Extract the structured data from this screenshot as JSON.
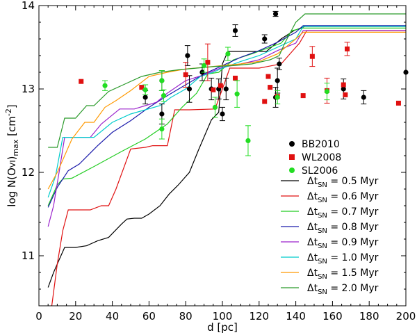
{
  "chart_data": {
    "type": "scatter",
    "xlabel": "d [pc]",
    "ylabel": {
      "prefix": "log N(O",
      "ion": "VI",
      "suffix": ")",
      "sub": "max",
      "unit_open": " [cm",
      "unit_exp": "-2",
      "unit_close": "]"
    },
    "xlim": [
      0,
      200
    ],
    "ylim": [
      10.4,
      14
    ],
    "xticks": [
      0,
      20,
      40,
      60,
      80,
      100,
      120,
      140,
      160,
      180,
      200
    ],
    "yticks": [
      11,
      12,
      13,
      14
    ],
    "legend_position": "lower-right",
    "scatter_series": [
      {
        "name": "BB2010",
        "marker": "circle",
        "color": "#000000",
        "points": [
          {
            "x": 58,
            "y": 12.9,
            "err": 0.08
          },
          {
            "x": 67,
            "y": 12.7,
            "err": 0.12
          },
          {
            "x": 67,
            "y": 13.1,
            "err": 0.12
          },
          {
            "x": 81,
            "y": 13.4,
            "err": 0.12
          },
          {
            "x": 82,
            "y": 13.0,
            "err": 0.16
          },
          {
            "x": 89,
            "y": 13.2,
            "err": 0.1
          },
          {
            "x": 94,
            "y": 13.0,
            "err": 0.13
          },
          {
            "x": 98,
            "y": 13.0,
            "err": 0.12
          },
          {
            "x": 100,
            "y": 12.7,
            "err": 0.08
          },
          {
            "x": 102,
            "y": 13.0,
            "err": 0.13
          },
          {
            "x": 107,
            "y": 13.7,
            "err": 0.07
          },
          {
            "x": 123,
            "y": 13.6,
            "err": 0.05
          },
          {
            "x": 129,
            "y": 13.9,
            "err": 0.03
          },
          {
            "x": 129,
            "y": 12.9,
            "err": 0.12
          },
          {
            "x": 130,
            "y": 13.1,
            "err": 0.15
          },
          {
            "x": 131,
            "y": 13.3,
            "err": 0.07
          },
          {
            "x": 166,
            "y": 13.0,
            "err": 0.12
          },
          {
            "x": 177,
            "y": 12.9,
            "err": 0.08
          },
          {
            "x": 200,
            "y": 13.2,
            "err": 0
          }
        ]
      },
      {
        "name": "WL2008",
        "marker": "square",
        "color": "#e01010",
        "points": [
          {
            "x": 23,
            "y": 13.09,
            "err": 0
          },
          {
            "x": 56,
            "y": 13.02,
            "err": 0
          },
          {
            "x": 80,
            "y": 13.17,
            "err": 0.15
          },
          {
            "x": 92,
            "y": 13.32,
            "err": 0.22
          },
          {
            "x": 95,
            "y": 12.99,
            "err": 0
          },
          {
            "x": 99,
            "y": 13.04,
            "err": 0
          },
          {
            "x": 107,
            "y": 13.13,
            "err": 0
          },
          {
            "x": 123,
            "y": 12.85,
            "err": 0
          },
          {
            "x": 125,
            "y": 13.15,
            "err": 0
          },
          {
            "x": 126,
            "y": 13.02,
            "err": 0
          },
          {
            "x": 130,
            "y": 12.91,
            "err": 0
          },
          {
            "x": 144,
            "y": 12.92,
            "err": 0
          },
          {
            "x": 149,
            "y": 13.39,
            "err": 0.12
          },
          {
            "x": 157,
            "y": 12.98,
            "err": 0.15
          },
          {
            "x": 166,
            "y": 13.05,
            "err": 0
          },
          {
            "x": 168,
            "y": 13.48,
            "err": 0.08
          },
          {
            "x": 167,
            "y": 12.93,
            "err": 0
          },
          {
            "x": 196,
            "y": 12.83,
            "err": 0
          }
        ]
      },
      {
        "name": "SL2006",
        "marker": "circle",
        "color": "#22dd22",
        "points": [
          {
            "x": 36,
            "y": 13.04,
            "err": 0.06
          },
          {
            "x": 58,
            "y": 12.99,
            "err": 0.06
          },
          {
            "x": 67,
            "y": 13.1,
            "err": 0.12
          },
          {
            "x": 67,
            "y": 12.52,
            "err": 0.12
          },
          {
            "x": 68,
            "y": 12.92,
            "err": 0.07
          },
          {
            "x": 90,
            "y": 13.28,
            "err": 0.08
          },
          {
            "x": 96,
            "y": 12.78,
            "err": 0.12
          },
          {
            "x": 103,
            "y": 13.42,
            "err": 0.08
          },
          {
            "x": 108,
            "y": 12.94,
            "err": 0.16
          },
          {
            "x": 114,
            "y": 12.38,
            "err": 0.18
          },
          {
            "x": 130,
            "y": 12.9,
            "err": 0.08
          },
          {
            "x": 157,
            "y": 12.97,
            "err": 0.1
          }
        ]
      }
    ],
    "line_series": [
      {
        "name": "Δt = 0.5 Myr",
        "label_main": "Δt",
        "label_sub": "SN",
        "label_value": " = 0.5 Myr",
        "color": "#000000",
        "x": [
          5,
          8,
          11,
          14,
          20,
          26,
          32,
          38,
          45,
          48,
          52,
          56,
          60,
          66,
          71,
          76,
          82,
          87,
          94,
          98,
          100,
          103,
          107,
          112,
          118,
          124,
          132,
          139,
          145,
          200
        ],
        "y": [
          10.62,
          10.8,
          10.95,
          11.1,
          11.1,
          11.12,
          11.18,
          11.22,
          11.38,
          11.44,
          11.45,
          11.45,
          11.5,
          11.6,
          11.74,
          11.85,
          12.0,
          12.27,
          12.63,
          12.72,
          13.3,
          13.45,
          13.45,
          13.45,
          13.45,
          13.45,
          13.6,
          13.7,
          13.75,
          13.75
        ]
      },
      {
        "name": "Δt = 0.6 Myr",
        "label_main": "Δt",
        "label_sub": "SN",
        "label_value": " = 0.6 Myr",
        "color": "#e01010",
        "x": [
          7,
          10,
          13,
          16,
          28,
          34,
          38,
          42,
          50,
          58,
          62,
          70,
          74,
          82,
          96,
          100,
          104,
          120,
          132,
          142,
          146,
          200
        ],
        "y": [
          10.4,
          10.9,
          11.3,
          11.55,
          11.55,
          11.6,
          11.6,
          11.8,
          12.28,
          12.3,
          12.32,
          12.32,
          12.75,
          12.75,
          12.76,
          13.0,
          13.25,
          13.25,
          13.3,
          13.55,
          13.7,
          13.7
        ]
      },
      {
        "name": "Δt = 0.7 Myr",
        "label_main": "Δt",
        "label_sub": "SN",
        "label_value": " = 0.7 Myr",
        "color": "#22cc22",
        "x": [
          5,
          10,
          13,
          18,
          30,
          45,
          58,
          70,
          78,
          86,
          92,
          98,
          106,
          116,
          126,
          132,
          138,
          144,
          200
        ],
        "y": [
          11.6,
          11.85,
          11.92,
          11.93,
          12.07,
          12.25,
          12.4,
          12.58,
          12.78,
          12.95,
          13.18,
          13.2,
          13.35,
          13.42,
          13.5,
          13.55,
          13.7,
          13.73,
          13.73
        ]
      },
      {
        "name": "Δt = 0.8 Myr",
        "label_main": "Δt",
        "label_sub": "SN",
        "label_value": " = 0.8 Myr",
        "color": "#1a1aaa",
        "x": [
          5,
          10,
          16,
          22,
          32,
          40,
          50,
          60,
          70,
          80,
          90,
          100,
          110,
          120,
          130,
          140,
          144,
          200
        ],
        "y": [
          11.58,
          11.82,
          12.02,
          12.1,
          12.32,
          12.48,
          12.62,
          12.78,
          12.92,
          13.05,
          13.18,
          13.28,
          13.38,
          13.46,
          13.56,
          13.68,
          13.76,
          13.76
        ]
      },
      {
        "name": "Δt = 0.9 Myr",
        "label_main": "Δt",
        "label_sub": "SN",
        "label_value": " = 0.9 Myr",
        "color": "#9a22cc",
        "x": [
          5,
          8,
          11,
          14,
          28,
          34,
          44,
          52,
          58,
          64,
          70,
          80,
          90,
          100,
          110,
          120,
          130,
          140,
          144,
          200
        ],
        "y": [
          11.35,
          11.6,
          12.0,
          12.42,
          12.42,
          12.58,
          12.76,
          12.76,
          12.8,
          12.84,
          12.95,
          13.1,
          13.17,
          13.26,
          13.3,
          13.35,
          13.46,
          13.55,
          13.7,
          13.7
        ]
      },
      {
        "name": "Δt = 1.0 Myr",
        "label_main": "Δt",
        "label_sub": "SN",
        "label_value": " = 1.0 Myr",
        "color": "#00cccc",
        "x": [
          5,
          9,
          13,
          15,
          30,
          40,
          50,
          58,
          66,
          72,
          80,
          88,
          95,
          100,
          110,
          120,
          130,
          140,
          144,
          200
        ],
        "y": [
          11.7,
          11.95,
          12.42,
          12.42,
          12.42,
          12.6,
          12.7,
          12.75,
          12.8,
          12.9,
          13.0,
          13.15,
          13.2,
          13.25,
          13.33,
          13.4,
          13.5,
          13.6,
          13.75,
          13.75
        ]
      },
      {
        "name": "Δt = 1.5 Myr",
        "label_main": "Δt",
        "label_sub": "SN",
        "label_value": " = 1.5 Myr",
        "color": "#ff9900",
        "x": [
          5,
          10,
          14,
          18,
          25,
          30,
          36,
          42,
          50,
          60,
          70,
          80,
          90,
          100,
          110,
          120,
          130,
          140,
          144,
          200
        ],
        "y": [
          11.8,
          12.0,
          12.2,
          12.4,
          12.6,
          12.6,
          12.78,
          12.86,
          12.98,
          13.15,
          13.2,
          13.24,
          13.26,
          13.28,
          13.3,
          13.33,
          13.42,
          13.6,
          13.68,
          13.68
        ]
      },
      {
        "name": "Δt = 2.0 Myr",
        "label_main": "Δt",
        "label_sub": "SN",
        "label_value": " = 2.0 Myr",
        "color": "#2a9a2a",
        "x": [
          5,
          10,
          14,
          20,
          26,
          30,
          38,
          46,
          56,
          66,
          76,
          86,
          96,
          106,
          116,
          126,
          131,
          134,
          140,
          145,
          200
        ],
        "y": [
          12.3,
          12.3,
          12.65,
          12.65,
          12.8,
          12.8,
          12.97,
          13.05,
          13.15,
          13.2,
          13.23,
          13.25,
          13.27,
          13.28,
          13.3,
          13.35,
          13.4,
          13.55,
          13.8,
          13.9,
          13.9
        ]
      }
    ]
  }
}
